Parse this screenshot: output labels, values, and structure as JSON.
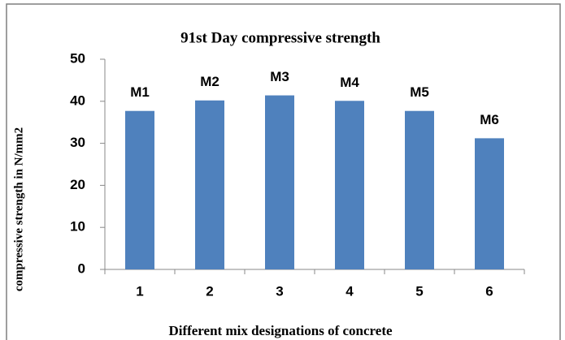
{
  "chart_data": {
    "type": "bar",
    "title": "91st Day compressive strength",
    "x_label": "Different mix designations of concrete",
    "y_label": "compressive strength in N/mm2",
    "categories": [
      "1",
      "2",
      "3",
      "4",
      "5",
      "6"
    ],
    "values": [
      37.7,
      40.2,
      41.4,
      40.1,
      37.7,
      31.2
    ],
    "bar_labels": [
      "M1",
      "M2",
      "M3",
      "M4",
      "M5",
      "M6"
    ],
    "color": "#4f81bd",
    "ylim": [
      0,
      50
    ],
    "yticks": [
      0,
      10,
      20,
      30,
      40,
      50
    ],
    "grid": false
  }
}
